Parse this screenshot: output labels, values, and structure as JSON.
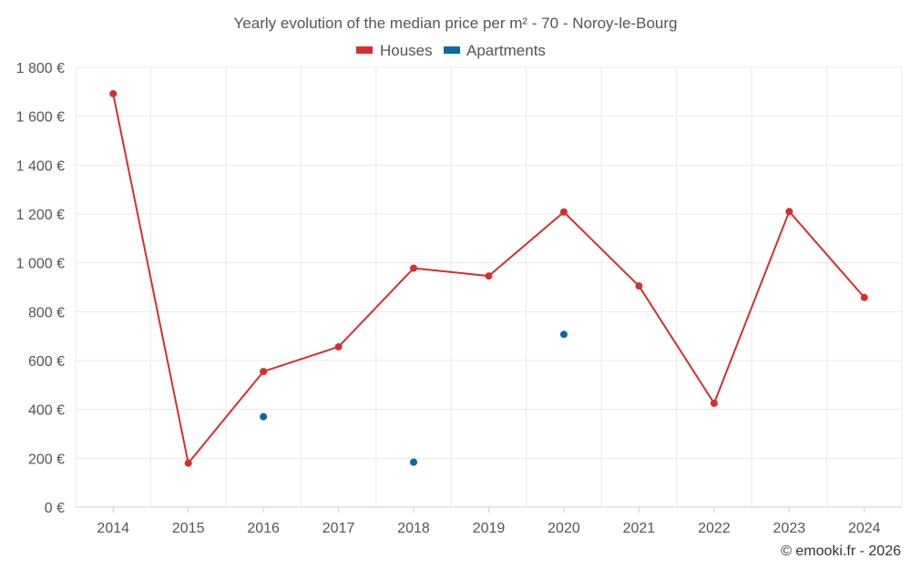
{
  "chart_data": {
    "type": "line",
    "title": "Yearly evolution of the median price per m² - 70 - Noroy-le-Bourg",
    "categories": [
      "2014",
      "2015",
      "2016",
      "2017",
      "2018",
      "2019",
      "2020",
      "2021",
      "2022",
      "2023",
      "2024"
    ],
    "ylim": [
      0,
      1800
    ],
    "yticks": [
      0,
      200,
      400,
      600,
      800,
      1000,
      1200,
      1400,
      1600,
      1800
    ],
    "ytick_labels": [
      "0 €",
      "200 €",
      "400 €",
      "600 €",
      "800 €",
      "1 000 €",
      "1 200 €",
      "1 400 €",
      "1 600 €",
      "1 800 €"
    ],
    "grid": true,
    "legend_position": "top-center",
    "series": [
      {
        "name": "Houses",
        "color": "#d32f2f",
        "style": "line-markers",
        "values": [
          1692,
          180,
          555,
          656,
          978,
          946,
          1208,
          905,
          425,
          1210,
          858
        ]
      },
      {
        "name": "Apartments",
        "color": "#0a6aa1",
        "style": "markers",
        "values": [
          null,
          null,
          370,
          null,
          184,
          null,
          707,
          null,
          null,
          null,
          null
        ]
      }
    ],
    "credit": "© emooki.fr - 2026"
  }
}
